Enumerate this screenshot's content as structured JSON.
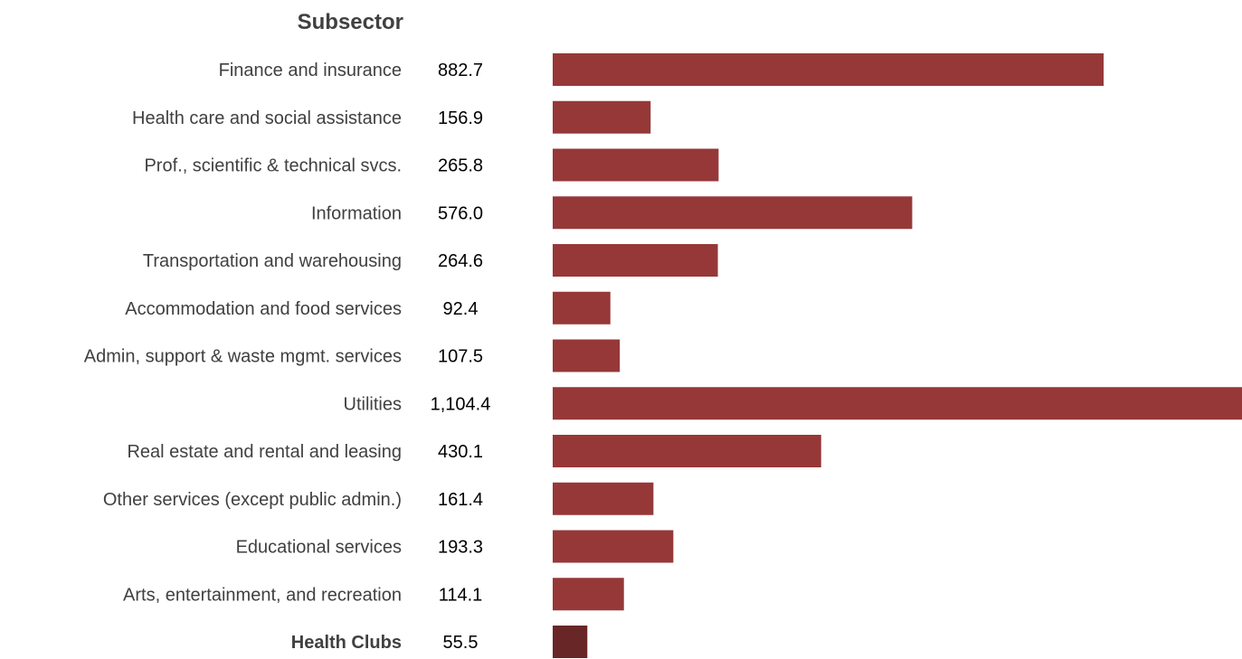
{
  "chart_data": {
    "type": "bar",
    "orientation": "horizontal",
    "column_header": "Subsector",
    "categories": [
      "Finance and insurance",
      "Health care and social assistance",
      "Prof., scientific & technical svcs.",
      "Information",
      "Transportation and warehousing",
      "Accommodation and food services",
      "Admin, support & waste mgmt. services",
      "Utilities",
      "Real estate and rental and leasing",
      "Other services (except public admin.)",
      "Educational services",
      "Arts, entertainment, and recreation",
      "Health Clubs"
    ],
    "values": [
      882.7,
      156.9,
      265.8,
      576.0,
      264.6,
      92.4,
      107.5,
      1104.4,
      430.1,
      161.4,
      193.3,
      114.1,
      55.5
    ],
    "value_labels": [
      "882.7",
      "156.9",
      "265.8",
      "576.0",
      "264.6",
      "92.4",
      "107.5",
      "1,104.4",
      "430.1",
      "161.4",
      "193.3",
      "114.1",
      "55.5"
    ],
    "highlight_category": "Health Clubs",
    "xlim": [
      0,
      1104.4
    ],
    "grid": false,
    "legend": "none",
    "colors": {
      "bar": "#963838",
      "highlight_bar": "#682626"
    }
  }
}
